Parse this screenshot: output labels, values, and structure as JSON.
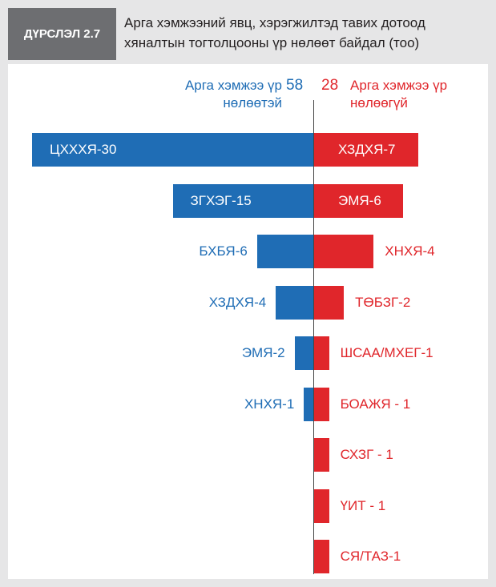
{
  "chart_data": {
    "type": "diverging-bar",
    "figure_label": "ДҮРСЛЭЛ 2.7",
    "title": "Арга хэмжээний явц, хэрэгжилтэд тавих дотоод хяналтын тогтолцооны үр нөлөөт байдал (тоо)",
    "series": [
      {
        "name": "Арга хэмжээ үр нөлөөтэй",
        "total": 58,
        "color": "#1f6db5",
        "side": "left",
        "values": [
          30,
          15,
          6,
          4,
          2,
          1
        ],
        "value_labels": [
          "ЦХХХЯ-30",
          "ЗГХЭГ-15",
          "БХБЯ-6",
          "ХЗДХЯ-4",
          "ЭМЯ-2",
          "ХНХЯ-1"
        ]
      },
      {
        "name": "Арга хэмжээ үр нөлөөгүй",
        "total": 28,
        "color": "#e0262b",
        "side": "right",
        "values": [
          7,
          6,
          4,
          2,
          1,
          1,
          1,
          1,
          1
        ],
        "value_labels": [
          "ХЗДХЯ-7",
          "ЭМЯ-6",
          "ХНХЯ-4",
          "ТӨБЗГ-2",
          "ШСАА/МХЕГ-1",
          "БОАЖЯ - 1",
          "СХЗГ - 1",
          "ҮИТ - 1",
          "СЯ/ТАЗ-1"
        ]
      }
    ]
  }
}
